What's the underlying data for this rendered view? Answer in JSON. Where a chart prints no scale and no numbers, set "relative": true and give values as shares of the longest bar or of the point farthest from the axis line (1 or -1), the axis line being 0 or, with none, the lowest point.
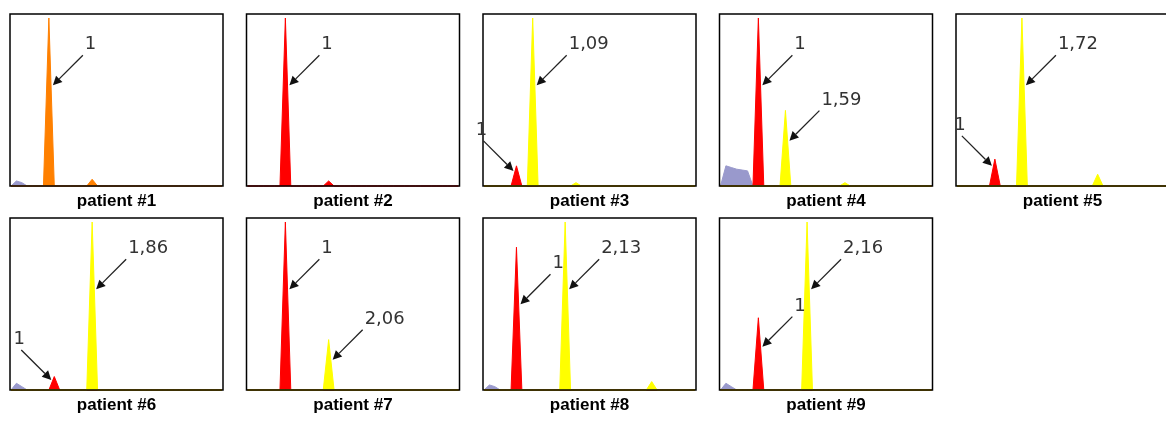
{
  "chart_data": [
    {
      "type": "area",
      "relative": true,
      "xlabel": "patient #1",
      "tick_labels": false,
      "categories": [
        null,
        null,
        null,
        null,
        null,
        null,
        null,
        null,
        null,
        null,
        null,
        null,
        null,
        null,
        null,
        null,
        null,
        null,
        null,
        null,
        null,
        null,
        null,
        null,
        null,
        null,
        null,
        null,
        null,
        null,
        null,
        null,
        null,
        null,
        null,
        null,
        null,
        null,
        null,
        null
      ],
      "series": [
        {
          "color": "#9999cc",
          "values": [
            0,
            0.03,
            0.02,
            0,
            0,
            0,
            0,
            0,
            0,
            0,
            0,
            0,
            0,
            0,
            0,
            0,
            0,
            0,
            0,
            0,
            0,
            0,
            0,
            0,
            0,
            0,
            0,
            0,
            0,
            0,
            0,
            0,
            0,
            0,
            0,
            0,
            0,
            0,
            0,
            0
          ]
        },
        {
          "color": "#ff8000",
          "values": [
            0,
            0,
            0,
            0,
            0,
            0,
            0,
            1,
            0,
            0,
            0,
            0,
            0,
            0,
            0,
            0.04,
            0,
            0,
            0,
            0,
            0,
            0,
            0,
            0,
            0,
            0,
            0,
            0,
            0,
            0,
            0,
            0,
            0,
            0,
            0,
            0,
            0,
            0,
            0,
            0
          ]
        }
      ],
      "annotations": [
        "1"
      ]
    },
    {
      "type": "area",
      "relative": true,
      "xlabel": "patient #2",
      "tick_labels": false,
      "categories": [
        null,
        null,
        null,
        null,
        null,
        null,
        null,
        null,
        null,
        null,
        null,
        null,
        null,
        null,
        null,
        null,
        null,
        null,
        null,
        null,
        null,
        null,
        null,
        null,
        null,
        null,
        null,
        null,
        null,
        null,
        null,
        null,
        null,
        null,
        null,
        null,
        null,
        null,
        null,
        null
      ],
      "series": [
        {
          "color": "#ff0000",
          "values": [
            0,
            0,
            0,
            0,
            0,
            0,
            0,
            1,
            0,
            0,
            0,
            0,
            0,
            0,
            0,
            0.03,
            0,
            0,
            0,
            0,
            0,
            0,
            0,
            0,
            0,
            0,
            0,
            0,
            0,
            0,
            0,
            0,
            0,
            0,
            0,
            0,
            0,
            0,
            0,
            0
          ]
        }
      ],
      "annotations": [
        "1"
      ]
    },
    {
      "type": "area",
      "relative": true,
      "xlabel": "patient #3",
      "tick_labels": false,
      "categories": [
        null,
        null,
        null,
        null,
        null,
        null,
        null,
        null,
        null,
        null,
        null,
        null,
        null,
        null,
        null,
        null,
        null,
        null,
        null,
        null,
        null,
        null,
        null,
        null,
        null,
        null,
        null,
        null,
        null,
        null,
        null,
        null,
        null,
        null,
        null,
        null,
        null,
        null,
        null,
        null
      ],
      "series": [
        {
          "color": "#ff0000",
          "values": [
            0,
            0,
            0,
            0,
            0,
            0,
            0.12,
            0,
            0,
            0,
            0,
            0,
            0,
            0,
            0,
            0,
            0,
            0,
            0,
            0,
            0,
            0,
            0,
            0,
            0,
            0,
            0,
            0,
            0,
            0,
            0,
            0,
            0,
            0,
            0,
            0,
            0,
            0,
            0,
            0
          ]
        },
        {
          "color": "#ffff00",
          "values": [
            0,
            0,
            0,
            0,
            0,
            0,
            0,
            0,
            0,
            1,
            0,
            0,
            0,
            0,
            0,
            0,
            0,
            0.02,
            0,
            0,
            0,
            0,
            0,
            0,
            0,
            0,
            0,
            0,
            0,
            0,
            0,
            0,
            0,
            0,
            0,
            0,
            0,
            0,
            0,
            0
          ]
        }
      ],
      "annotations": [
        "1",
        "1,09"
      ]
    },
    {
      "type": "area",
      "relative": true,
      "xlabel": "patient #4",
      "tick_labels": false,
      "categories": [
        null,
        null,
        null,
        null,
        null,
        null,
        null,
        null,
        null,
        null,
        null,
        null,
        null,
        null,
        null,
        null,
        null,
        null,
        null,
        null,
        null,
        null,
        null,
        null,
        null,
        null,
        null,
        null,
        null,
        null,
        null,
        null,
        null,
        null,
        null,
        null,
        null,
        null,
        null,
        null
      ],
      "series": [
        {
          "color": "#9999cc",
          "values": [
            0,
            0.12,
            0.11,
            0.1,
            0.095,
            0.09,
            0,
            0,
            0,
            0,
            0,
            0,
            0,
            0,
            0,
            0,
            0,
            0,
            0,
            0,
            0,
            0,
            0,
            0,
            0,
            0,
            0,
            0,
            0,
            0,
            0,
            0,
            0,
            0,
            0,
            0,
            0,
            0,
            0,
            0
          ]
        },
        {
          "color": "#ff0000",
          "values": [
            0,
            0,
            0,
            0,
            0,
            0,
            0,
            1,
            0,
            0,
            0,
            0,
            0,
            0,
            0,
            0,
            0,
            0,
            0,
            0,
            0,
            0,
            0,
            0,
            0,
            0,
            0,
            0,
            0,
            0,
            0,
            0,
            0,
            0,
            0,
            0,
            0,
            0,
            0,
            0
          ]
        },
        {
          "color": "#ffff00",
          "values": [
            0,
            0,
            0,
            0,
            0,
            0,
            0,
            0,
            0,
            0,
            0,
            0,
            0.45,
            0,
            0,
            0,
            0,
            0,
            0,
            0,
            0,
            0,
            0,
            0.02,
            0,
            0,
            0,
            0,
            0,
            0,
            0,
            0,
            0,
            0,
            0,
            0,
            0,
            0,
            0,
            0
          ]
        }
      ],
      "annotations": [
        "1",
        "1,59"
      ]
    },
    {
      "type": "area",
      "relative": true,
      "xlabel": "patient #5",
      "tick_labels": false,
      "categories": [
        null,
        null,
        null,
        null,
        null,
        null,
        null,
        null,
        null,
        null,
        null,
        null,
        null,
        null,
        null,
        null,
        null,
        null,
        null,
        null,
        null,
        null,
        null,
        null,
        null,
        null,
        null,
        null,
        null,
        null,
        null,
        null,
        null,
        null,
        null,
        null,
        null,
        null,
        null,
        null
      ],
      "series": [
        {
          "color": "#ff0000",
          "values": [
            0,
            0,
            0,
            0,
            0,
            0,
            0,
            0.16,
            0,
            0,
            0,
            0,
            0,
            0,
            0,
            0,
            0,
            0,
            0,
            0,
            0,
            0,
            0,
            0,
            0,
            0,
            0,
            0,
            0,
            0,
            0,
            0,
            0,
            0,
            0,
            0,
            0,
            0,
            0,
            0
          ]
        },
        {
          "color": "#ffff00",
          "values": [
            0,
            0,
            0,
            0,
            0,
            0,
            0,
            0,
            0,
            0,
            0,
            0,
            1,
            0,
            0,
            0,
            0,
            0,
            0,
            0,
            0,
            0,
            0,
            0,
            0,
            0,
            0.07,
            0,
            0,
            0,
            0,
            0,
            0,
            0,
            0,
            0,
            0,
            0,
            0,
            0
          ]
        }
      ],
      "annotations": [
        "1",
        "1,72"
      ]
    },
    {
      "type": "area",
      "relative": true,
      "xlabel": "patient #6",
      "tick_labels": false,
      "categories": [
        null,
        null,
        null,
        null,
        null,
        null,
        null,
        null,
        null,
        null,
        null,
        null,
        null,
        null,
        null,
        null,
        null,
        null,
        null,
        null,
        null,
        null,
        null,
        null,
        null,
        null,
        null,
        null,
        null,
        null,
        null,
        null,
        null,
        null,
        null,
        null,
        null,
        null,
        null,
        null
      ],
      "series": [
        {
          "color": "#9999cc",
          "values": [
            0,
            0.04,
            0.02,
            0,
            0,
            0,
            0,
            0,
            0,
            0,
            0,
            0,
            0,
            0,
            0,
            0,
            0,
            0,
            0,
            0,
            0,
            0,
            0,
            0,
            0,
            0,
            0,
            0,
            0,
            0,
            0,
            0,
            0,
            0,
            0,
            0,
            0,
            0,
            0,
            0
          ]
        },
        {
          "color": "#ff0000",
          "values": [
            0,
            0,
            0,
            0,
            0,
            0,
            0,
            0,
            0.08,
            0,
            0,
            0,
            0,
            0,
            0,
            0,
            0,
            0,
            0,
            0,
            0,
            0,
            0,
            0,
            0,
            0,
            0,
            0,
            0,
            0,
            0,
            0,
            0,
            0,
            0,
            0,
            0,
            0,
            0,
            0
          ]
        },
        {
          "color": "#ffff00",
          "values": [
            0,
            0,
            0,
            0,
            0,
            0,
            0,
            0,
            0,
            0,
            0,
            0,
            0,
            0,
            0,
            1,
            0,
            0,
            0,
            0,
            0,
            0,
            0,
            0,
            0,
            0,
            0,
            0,
            0,
            0,
            0,
            0,
            0,
            0,
            0,
            0,
            0,
            0,
            0,
            0
          ]
        }
      ],
      "annotations": [
        "1",
        "1,86"
      ]
    },
    {
      "type": "area",
      "relative": true,
      "xlabel": "patient #7",
      "tick_labels": false,
      "categories": [
        null,
        null,
        null,
        null,
        null,
        null,
        null,
        null,
        null,
        null,
        null,
        null,
        null,
        null,
        null,
        null,
        null,
        null,
        null,
        null,
        null,
        null,
        null,
        null,
        null,
        null,
        null,
        null,
        null,
        null,
        null,
        null,
        null,
        null,
        null,
        null,
        null,
        null,
        null,
        null
      ],
      "series": [
        {
          "color": "#ff0000",
          "values": [
            0,
            0,
            0,
            0,
            0,
            0,
            0,
            1,
            0,
            0,
            0,
            0,
            0,
            0,
            0,
            0,
            0,
            0,
            0,
            0,
            0,
            0,
            0,
            0,
            0,
            0,
            0,
            0,
            0,
            0,
            0,
            0,
            0,
            0,
            0,
            0,
            0,
            0,
            0,
            0
          ]
        },
        {
          "color": "#ffff00",
          "values": [
            0,
            0,
            0,
            0,
            0,
            0,
            0,
            0,
            0,
            0,
            0,
            0,
            0,
            0,
            0,
            0.3,
            0,
            0,
            0,
            0,
            0,
            0,
            0,
            0,
            0,
            0,
            0,
            0,
            0,
            0,
            0,
            0,
            0,
            0,
            0,
            0,
            0,
            0,
            0,
            0
          ]
        }
      ],
      "annotations": [
        "1",
        "2,06"
      ]
    },
    {
      "type": "area",
      "relative": true,
      "xlabel": "patient #8",
      "tick_labels": false,
      "categories": [
        null,
        null,
        null,
        null,
        null,
        null,
        null,
        null,
        null,
        null,
        null,
        null,
        null,
        null,
        null,
        null,
        null,
        null,
        null,
        null,
        null,
        null,
        null,
        null,
        null,
        null,
        null,
        null,
        null,
        null,
        null,
        null,
        null,
        null,
        null,
        null,
        null,
        null,
        null,
        null
      ],
      "series": [
        {
          "color": "#9999cc",
          "values": [
            0,
            0.03,
            0.02,
            0,
            0,
            0,
            0,
            0,
            0,
            0,
            0,
            0,
            0,
            0,
            0,
            0,
            0,
            0,
            0,
            0,
            0,
            0,
            0,
            0,
            0,
            0,
            0,
            0,
            0,
            0,
            0,
            0,
            0,
            0,
            0,
            0,
            0,
            0,
            0,
            0
          ]
        },
        {
          "color": "#ff0000",
          "values": [
            0,
            0,
            0,
            0,
            0,
            0,
            0.85,
            0,
            0,
            0,
            0,
            0,
            0,
            0,
            0,
            0,
            0,
            0,
            0,
            0,
            0,
            0,
            0,
            0,
            0,
            0,
            0,
            0,
            0,
            0,
            0,
            0,
            0,
            0,
            0,
            0,
            0,
            0,
            0,
            0
          ]
        },
        {
          "color": "#ffff00",
          "values": [
            0,
            0,
            0,
            0,
            0,
            0,
            0,
            0,
            0,
            0,
            0,
            0,
            0,
            0,
            0,
            1,
            0,
            0,
            0,
            0,
            0,
            0,
            0,
            0,
            0,
            0,
            0,
            0,
            0,
            0,
            0,
            0.05,
            0,
            0,
            0,
            0,
            0,
            0,
            0,
            0
          ]
        }
      ],
      "annotations": [
        "1",
        "2,13"
      ]
    },
    {
      "type": "area",
      "relative": true,
      "xlabel": "patient #9",
      "tick_labels": false,
      "categories": [
        null,
        null,
        null,
        null,
        null,
        null,
        null,
        null,
        null,
        null,
        null,
        null,
        null,
        null,
        null,
        null,
        null,
        null,
        null,
        null,
        null,
        null,
        null,
        null,
        null,
        null,
        null,
        null,
        null,
        null,
        null,
        null,
        null,
        null,
        null,
        null,
        null,
        null,
        null,
        null
      ],
      "series": [
        {
          "color": "#9999cc",
          "values": [
            0,
            0.04,
            0.02,
            0,
            0,
            0,
            0,
            0,
            0,
            0,
            0,
            0,
            0,
            0,
            0,
            0,
            0,
            0,
            0,
            0,
            0,
            0,
            0,
            0,
            0,
            0,
            0,
            0,
            0,
            0,
            0,
            0,
            0,
            0,
            0,
            0,
            0,
            0,
            0,
            0
          ]
        },
        {
          "color": "#ff0000",
          "values": [
            0,
            0,
            0,
            0,
            0,
            0,
            0,
            0.43,
            0,
            0,
            0,
            0,
            0,
            0,
            0,
            0,
            0,
            0,
            0,
            0,
            0,
            0,
            0,
            0,
            0,
            0,
            0,
            0,
            0,
            0,
            0,
            0,
            0,
            0,
            0,
            0,
            0,
            0,
            0,
            0
          ]
        },
        {
          "color": "#ffff00",
          "values": [
            0,
            0,
            0,
            0,
            0,
            0,
            0,
            0,
            0,
            0,
            0,
            0,
            0,
            0,
            0,
            0,
            1,
            0,
            0,
            0,
            0,
            0,
            0,
            0,
            0,
            0,
            0,
            0,
            0,
            0,
            0,
            0,
            0,
            0,
            0,
            0,
            0,
            0,
            0,
            0
          ]
        }
      ],
      "annotations": [
        "1",
        "2,16"
      ]
    }
  ]
}
